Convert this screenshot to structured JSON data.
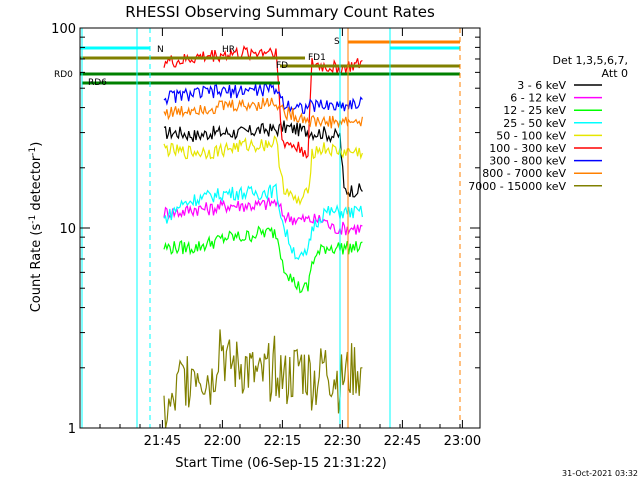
{
  "chart_data": {
    "type": "line",
    "title": "RHESSI Observing Summary Count Rates",
    "xlabel": "Start Time (06-Sep-15 21:31:22)",
    "ylabel_prefix": "Count Rate (s",
    "ylabel_exp": "-1",
    "ylabel_suffix": " detector",
    "ylabel_close": ")",
    "yscale": "log",
    "ylim": [
      1,
      100
    ],
    "xlim_minutes_after_start": [
      -7,
      93
    ],
    "x_tick_labels": [
      "21:45",
      "22:00",
      "22:15",
      "22:30",
      "22:45",
      "23:00"
    ],
    "x_tick_minutes_after_start": [
      13.6,
      28.6,
      43.6,
      58.6,
      73.6,
      88.6
    ],
    "y_tick_labels": [
      "1",
      "10",
      "100"
    ],
    "y_tick_values": [
      1,
      10,
      100
    ],
    "legend_header": [
      "Det 1,3,5,6,7,",
      "Att 0"
    ],
    "legend_position": "right",
    "timestamp": "31-Oct-2021 03:32",
    "series": [
      {
        "name": "3 - 6 keV",
        "color": "#000000",
        "points": [
          [
            14,
            30
          ],
          [
            18,
            30
          ],
          [
            22,
            29
          ],
          [
            26,
            30
          ],
          [
            30,
            30
          ],
          [
            34,
            30
          ],
          [
            38,
            31
          ],
          [
            42,
            31
          ],
          [
            44,
            32
          ],
          [
            48,
            31
          ],
          [
            52,
            30
          ],
          [
            54,
            30
          ],
          [
            56,
            29
          ],
          [
            58,
            29
          ],
          [
            59,
            15.5
          ],
          [
            62,
            15.5
          ],
          [
            64,
            15.5
          ]
        ]
      },
      {
        "name": "6 - 12 keV",
        "color": "#ff00ff",
        "points": [
          [
            14,
            12
          ],
          [
            18,
            12
          ],
          [
            22,
            12.5
          ],
          [
            26,
            12.5
          ],
          [
            30,
            13
          ],
          [
            34,
            13
          ],
          [
            38,
            13
          ],
          [
            42,
            13.5
          ],
          [
            44,
            11.5
          ],
          [
            48,
            11
          ],
          [
            52,
            11
          ],
          [
            54,
            11
          ],
          [
            56,
            10
          ],
          [
            58,
            10
          ],
          [
            62,
            10
          ],
          [
            64,
            10
          ]
        ]
      },
      {
        "name": "12 - 25 keV",
        "color": "#00ff00",
        "points": [
          [
            14,
            8
          ],
          [
            18,
            8
          ],
          [
            22,
            8
          ],
          [
            26,
            8.5
          ],
          [
            30,
            9
          ],
          [
            34,
            9
          ],
          [
            38,
            9.5
          ],
          [
            42,
            9.5
          ],
          [
            44,
            6.5
          ],
          [
            46,
            5.5
          ],
          [
            48,
            5
          ],
          [
            50,
            5
          ],
          [
            51,
            6.8
          ],
          [
            54,
            8
          ],
          [
            58,
            8
          ],
          [
            62,
            8
          ],
          [
            64,
            8
          ]
        ]
      },
      {
        "name": "25 - 50 keV",
        "color": "#00ffff",
        "points": [
          [
            14,
            11
          ],
          [
            18,
            13
          ],
          [
            22,
            14
          ],
          [
            26,
            14.5
          ],
          [
            30,
            15
          ],
          [
            34,
            15
          ],
          [
            38,
            15
          ],
          [
            42,
            15.5
          ],
          [
            44,
            10
          ],
          [
            46,
            8
          ],
          [
            48,
            7
          ],
          [
            50,
            7.5
          ],
          [
            51,
            10
          ],
          [
            54,
            12
          ],
          [
            58,
            12
          ],
          [
            62,
            12
          ],
          [
            64,
            12
          ]
        ]
      },
      {
        "name": "50 - 100 keV",
        "color": "#e6e600",
        "points": [
          [
            14,
            25
          ],
          [
            18,
            24
          ],
          [
            22,
            24
          ],
          [
            26,
            24
          ],
          [
            30,
            25
          ],
          [
            34,
            26
          ],
          [
            38,
            26
          ],
          [
            42,
            27
          ],
          [
            44,
            16
          ],
          [
            46,
            14
          ],
          [
            48,
            13.5
          ],
          [
            50,
            15
          ],
          [
            51,
            24
          ],
          [
            54,
            25
          ],
          [
            58,
            24
          ],
          [
            62,
            24
          ],
          [
            64,
            24
          ]
        ]
      },
      {
        "name": "100 - 300 keV",
        "color": "#ff0000",
        "points": [
          [
            14,
            68
          ],
          [
            18,
            68
          ],
          [
            22,
            71
          ],
          [
            26,
            73
          ],
          [
            30,
            74
          ],
          [
            34,
            75
          ],
          [
            38,
            76
          ],
          [
            42,
            78
          ],
          [
            43.5,
            27
          ],
          [
            46,
            26
          ],
          [
            48,
            25
          ],
          [
            50,
            24
          ],
          [
            51,
            66
          ],
          [
            54,
            64
          ],
          [
            58,
            63
          ],
          [
            62,
            65
          ],
          [
            64,
            67
          ]
        ]
      },
      {
        "name": "300 - 800 keV",
        "color": "#0000ff",
        "points": [
          [
            14,
            45
          ],
          [
            18,
            46
          ],
          [
            22,
            47
          ],
          [
            26,
            48
          ],
          [
            30,
            48
          ],
          [
            34,
            49
          ],
          [
            38,
            49
          ],
          [
            42,
            50
          ],
          [
            44,
            42
          ],
          [
            48,
            40
          ],
          [
            52,
            41
          ],
          [
            54,
            41
          ],
          [
            58,
            41
          ],
          [
            62,
            42
          ],
          [
            64,
            42
          ]
        ]
      },
      {
        "name": "800 - 7000 keV",
        "color": "#ff8000",
        "points": [
          [
            14,
            38
          ],
          [
            18,
            38
          ],
          [
            22,
            40
          ],
          [
            26,
            40
          ],
          [
            30,
            41
          ],
          [
            34,
            41
          ],
          [
            38,
            42
          ],
          [
            42,
            43
          ],
          [
            44,
            38
          ],
          [
            48,
            36
          ],
          [
            52,
            34
          ],
          [
            54,
            34
          ],
          [
            58,
            34
          ],
          [
            62,
            34
          ],
          [
            64,
            34
          ]
        ]
      },
      {
        "name": "7000 - 15000 keV",
        "color": "#808000",
        "points": [
          [
            14,
            1.05
          ],
          [
            16,
            1.05
          ],
          [
            18,
            1.5
          ],
          [
            22,
            1.8
          ],
          [
            26,
            1.5
          ],
          [
            28,
            2.5
          ],
          [
            30,
            1.8
          ],
          [
            34,
            1.8
          ],
          [
            38,
            1.5
          ],
          [
            42,
            1.9
          ],
          [
            44,
            1.5
          ],
          [
            48,
            1.8
          ],
          [
            52,
            1.5
          ],
          [
            54,
            1.8
          ],
          [
            58,
            1.5
          ],
          [
            62,
            1.8
          ],
          [
            64,
            1.5
          ]
        ]
      }
    ],
    "markers": [
      {
        "label": "N",
        "color": "#00ffff"
      },
      {
        "label": "S",
        "color": "#ff8000"
      },
      {
        "label": "FD1",
        "color": "#808000"
      },
      {
        "label": "FD",
        "color": "#808000"
      },
      {
        "label": "HR",
        "color": "#ff0000"
      },
      {
        "label": "RD0",
        "color": "#008000"
      },
      {
        "label": "RD6",
        "color": "#008000"
      }
    ]
  }
}
